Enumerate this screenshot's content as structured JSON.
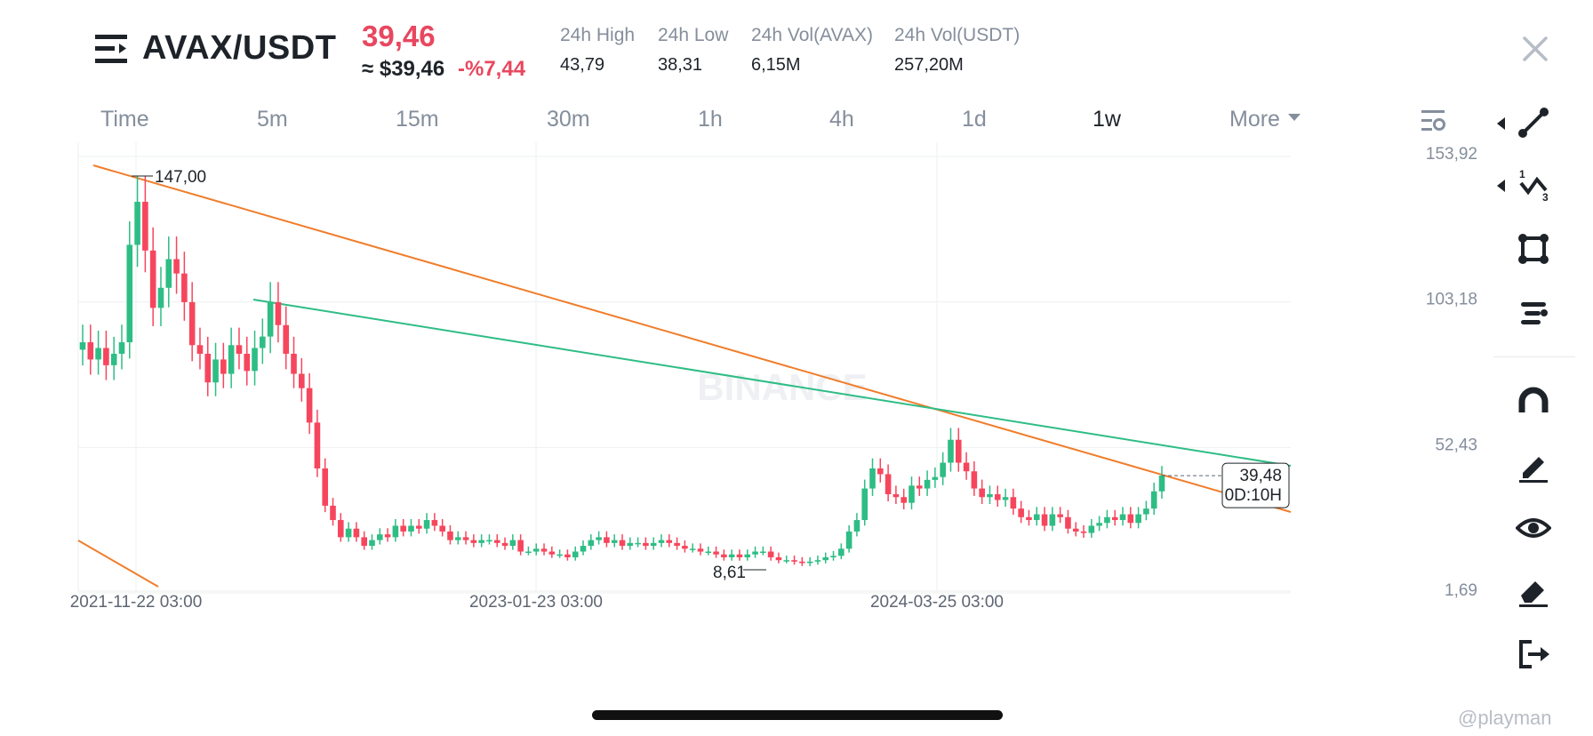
{
  "header": {
    "pair": "AVAX/USDT",
    "last_price": "39,46",
    "approx_price": "≈ $39,46",
    "change_pct": "-%7,44",
    "stats": [
      {
        "label": "24h High",
        "value": "43,79"
      },
      {
        "label": "24h Low",
        "value": "38,31"
      },
      {
        "label": "24h Vol(AVAX)",
        "value": "6,15M"
      },
      {
        "label": "24h Vol(USDT)",
        "value": "257,20M"
      }
    ]
  },
  "timeframes": [
    "Time",
    "5m",
    "15m",
    "30m",
    "1h",
    "4h",
    "1d",
    "1w",
    "More"
  ],
  "active_timeframe": "1w",
  "tools": [
    "line-tool-icon",
    "fib-tool-icon",
    "rect-tool-icon",
    "text-tool-icon",
    "magnet-icon",
    "pencil-icon",
    "eye-icon",
    "eraser-icon",
    "exit-icon"
  ],
  "watermark": "BINANCE",
  "credit": "@playman",
  "colors": {
    "up": "#2ebd85",
    "down": "#f6465d",
    "price_red": "#e8475f",
    "trendline_orange": "#f07d2b",
    "trendline_green": "#2ebd85"
  },
  "chart_data": {
    "type": "candlestick",
    "timeframe": "1w",
    "y_axis_labels": [
      "153,92",
      "103,18",
      "52,43",
      "1,69"
    ],
    "x_axis_labels": [
      "2021-11-22 03:00",
      "2023-01-23 03:00",
      "2024-03-25 03:00"
    ],
    "grid": true,
    "last_price_box": {
      "price": "39,48",
      "countdown": "0D:10H"
    },
    "annotations": [
      {
        "text": "147,00",
        "kind": "high"
      },
      {
        "text": "8,61",
        "kind": "low"
      }
    ],
    "closes": [
      86,
      80,
      84,
      78,
      82,
      86,
      120,
      135,
      118,
      98,
      105,
      115,
      110,
      100,
      85,
      82,
      72,
      80,
      75,
      85,
      82,
      76,
      84,
      88,
      100,
      92,
      82,
      75,
      70,
      58,
      42,
      29,
      24,
      18,
      21,
      18,
      15,
      17,
      19,
      18,
      22,
      20,
      22,
      21,
      24,
      22,
      20,
      17,
      18,
      17,
      16,
      17,
      17,
      16,
      15,
      17,
      13,
      13,
      14,
      13,
      12,
      12,
      11,
      13,
      15,
      17,
      18,
      16,
      17,
      15,
      16,
      16,
      15,
      16,
      17,
      16,
      15,
      14,
      14,
      13,
      13,
      12,
      11,
      12,
      11,
      12,
      13,
      13,
      11,
      10,
      10,
      9.5,
      9,
      9.5,
      10,
      11,
      11.5,
      14,
      20,
      24,
      35,
      42,
      40,
      33,
      32,
      30,
      36,
      35,
      38,
      39,
      44,
      52,
      44,
      41,
      35,
      32,
      33,
      31,
      32,
      28,
      25,
      24,
      26,
      22,
      26,
      25,
      21,
      20,
      19.5,
      22,
      23,
      25,
      24,
      26,
      23,
      26,
      28,
      34,
      39.48
    ]
  }
}
